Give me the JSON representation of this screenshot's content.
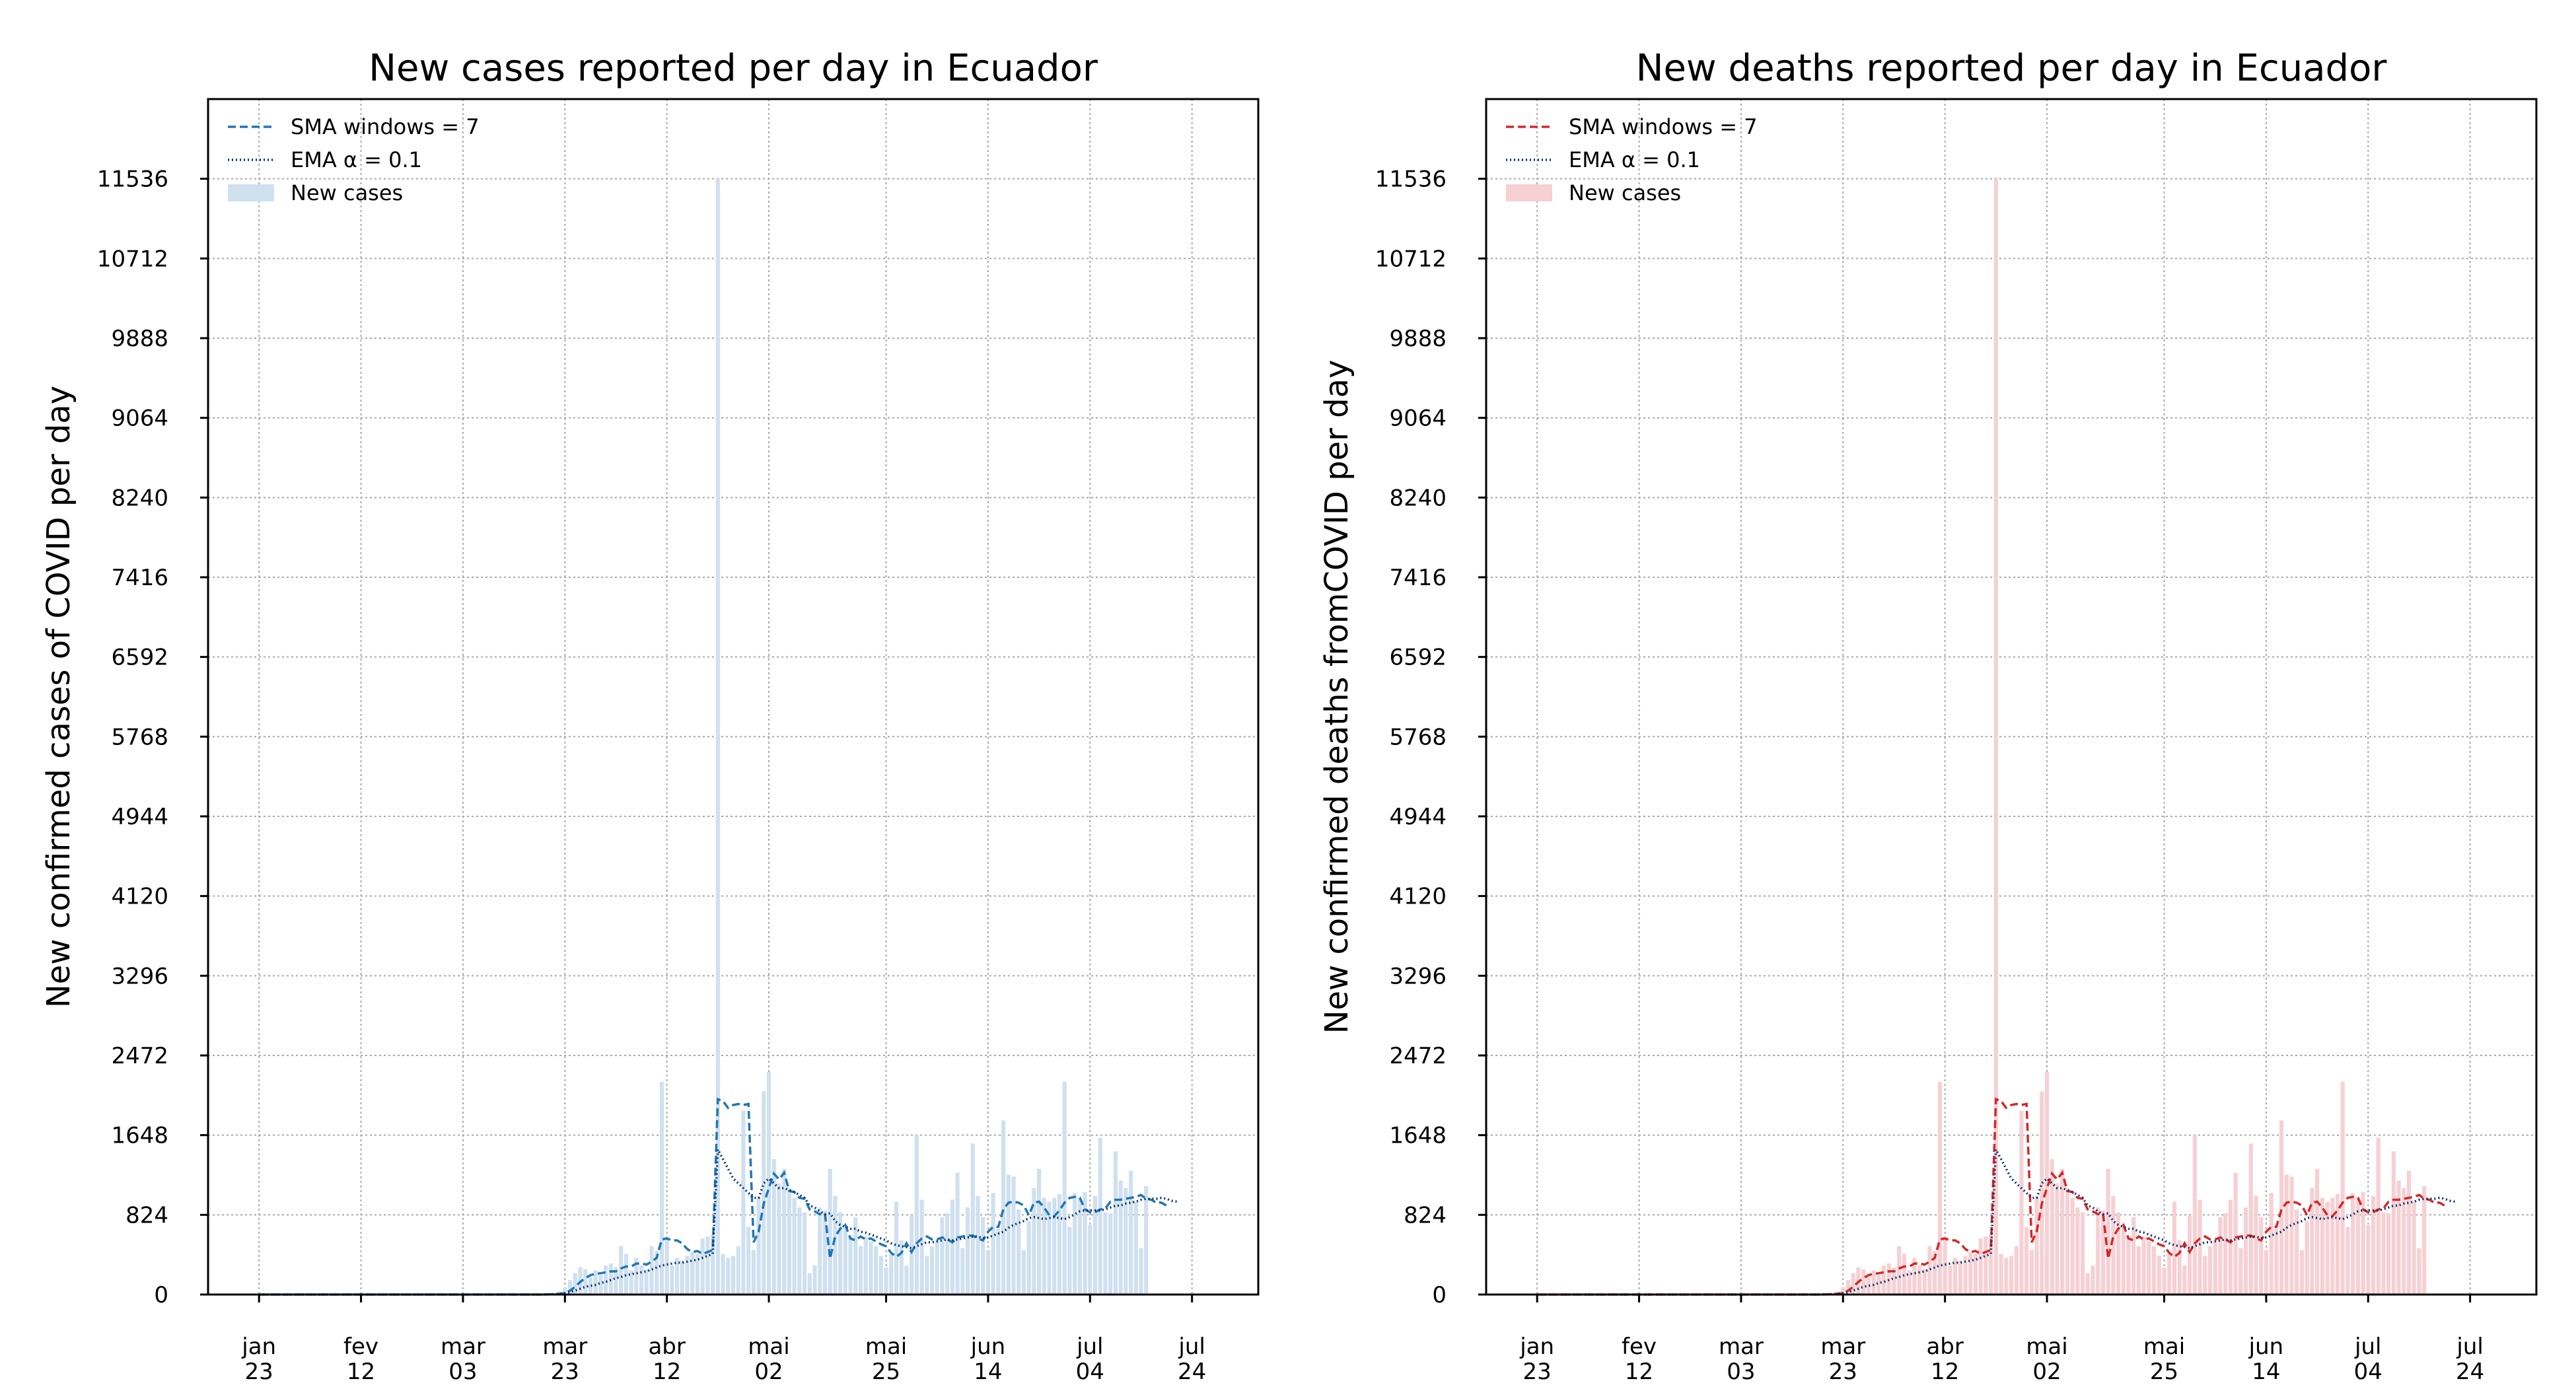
{
  "chart_data": [
    {
      "type": "bar",
      "title": "New cases reported per day in Ecuador",
      "xlabel": "",
      "ylabel": "New confirmed cases of COVID per day",
      "accent": "#1f77b4",
      "bar_color": "#cfe0ef",
      "ema_color": "#08306b",
      "grid": true,
      "legend_position": "top-left",
      "legend": [
        "SMA windows = 7",
        "EMA α = 0.1",
        "New cases"
      ],
      "ylim": [
        0,
        12360
      ],
      "yticks": [
        0,
        824,
        1648,
        2472,
        3296,
        4120,
        4944,
        5768,
        6592,
        7416,
        8240,
        9064,
        9888,
        10712,
        11536
      ],
      "ytick_labels": [
        "0",
        "824",
        "1648",
        "2472",
        "3296",
        "4120",
        "4944",
        "5768",
        "6592",
        "7416",
        "8240",
        "9064",
        "9888",
        "10712",
        "11536"
      ],
      "xlim_days": [
        -10,
        196
      ],
      "xticks": [
        {
          "day": 0,
          "month": "jan",
          "date": "23"
        },
        {
          "day": 20,
          "month": "fev",
          "date": "12"
        },
        {
          "day": 40,
          "month": "mar",
          "date": "03"
        },
        {
          "day": 60,
          "month": "mar",
          "date": "23"
        },
        {
          "day": 80,
          "month": "abr",
          "date": "12"
        },
        {
          "day": 100,
          "month": "mai",
          "date": "02"
        },
        {
          "day": 123,
          "month": "mai",
          "date": "25"
        },
        {
          "day": 143,
          "month": "jun",
          "date": "14"
        },
        {
          "day": 163,
          "month": "jul",
          "date": "04"
        },
        {
          "day": 183,
          "month": "jul",
          "date": "24"
        }
      ],
      "x_start": "2020-01-23",
      "values": [
        0,
        0,
        0,
        0,
        0,
        0,
        0,
        0,
        0,
        0,
        0,
        0,
        0,
        0,
        0,
        0,
        0,
        0,
        0,
        0,
        0,
        0,
        0,
        0,
        0,
        0,
        0,
        0,
        0,
        0,
        0,
        0,
        0,
        0,
        0,
        0,
        0,
        0,
        0,
        0,
        0,
        0,
        0,
        0,
        0,
        0,
        0,
        0,
        0,
        0,
        0,
        0,
        0,
        0,
        0,
        1,
        4,
        7,
        15,
        30,
        70,
        150,
        220,
        280,
        260,
        180,
        250,
        200,
        300,
        320,
        280,
        500,
        420,
        250,
        380,
        300,
        260,
        500,
        450,
        2200,
        600,
        300,
        380,
        350,
        400,
        440,
        420,
        580,
        600,
        620,
        11536,
        420,
        380,
        400,
        500,
        1900,
        700,
        460,
        1000,
        2100,
        2300,
        1400,
        1150,
        1300,
        1100,
        1000,
        900,
        850,
        220,
        300,
        900,
        870,
        1300,
        1020,
        850,
        700,
        600,
        800,
        500,
        600,
        550,
        500,
        400,
        280,
        420,
        960,
        560,
        300,
        820,
        1650,
        980,
        400,
        500,
        560,
        800,
        840,
        980,
        1260,
        480,
        900,
        1560,
        1020,
        800,
        460,
        1050,
        680,
        1800,
        1240,
        1220,
        880,
        460,
        760,
        1100,
        1300,
        1000,
        960,
        1000,
        1040,
        2200,
        700,
        1050,
        1000,
        1060,
        720,
        1020,
        1620,
        850,
        840,
        1480,
        1180,
        1100,
        1280,
        960,
        480,
        1120
      ],
      "sma": [
        0,
        0,
        0,
        0,
        0,
        0,
        0,
        0,
        0,
        0,
        0,
        0,
        0,
        0,
        0,
        0,
        0,
        0,
        0,
        0,
        0,
        0,
        0,
        0,
        0,
        0,
        0,
        0,
        0,
        0,
        0,
        0,
        0,
        0,
        0,
        0,
        0,
        0,
        0,
        0,
        0,
        0,
        0,
        0,
        0,
        0,
        0,
        0,
        0,
        0,
        0,
        0,
        0,
        0,
        0,
        0,
        1,
        2,
        4,
        8,
        15,
        40,
        80,
        130,
        170,
        200,
        215,
        220,
        230,
        240,
        240,
        270,
        290,
        290,
        320,
        320,
        310,
        340,
        380,
        570,
        580,
        560,
        560,
        530,
        470,
        440,
        450,
        420,
        440,
        460,
        2020,
        2000,
        1930,
        1960,
        1970,
        1960,
        1970,
        540,
        650,
        940,
        1100,
        1250,
        1190,
        1260,
        1070,
        1060,
        1000,
        990,
        880,
        860,
        830,
        840,
        370,
        600,
        680,
        720,
        580,
        560,
        600,
        570,
        580,
        550,
        520,
        500,
        430,
        390,
        430,
        530,
        440,
        530,
        580,
        600,
        570,
        570,
        590,
        570,
        540,
        590,
        600,
        610,
        610,
        580,
        560,
        650,
        700,
        700,
        880,
        950,
        960,
        950,
        920,
        820,
        950,
        960,
        900,
        820,
        810,
        870,
        950,
        1000,
        1010,
        1000,
        880,
        850,
        850,
        880,
        890,
        960,
        980,
        980,
        990,
        1000,
        1010,
        1030,
        990,
        980,
        950,
        950,
        920
      ],
      "ema": [
        0,
        0,
        0,
        0,
        0,
        0,
        0,
        0,
        0,
        0,
        0,
        0,
        0,
        0,
        0,
        0,
        0,
        0,
        0,
        0,
        0,
        0,
        0,
        0,
        0,
        0,
        0,
        0,
        0,
        0,
        0,
        0,
        0,
        0,
        0,
        0,
        0,
        0,
        0,
        0,
        0,
        0,
        0,
        0,
        0,
        0,
        0,
        0,
        0,
        0,
        0,
        0,
        0,
        0,
        0,
        0,
        1,
        2,
        4,
        8,
        15,
        25,
        40,
        60,
        80,
        90,
        100,
        120,
        130,
        150,
        170,
        180,
        200,
        210,
        220,
        230,
        240,
        260,
        280,
        300,
        310,
        320,
        330,
        330,
        340,
        350,
        360,
        380,
        400,
        420,
        1500,
        1400,
        1300,
        1200,
        1150,
        1100,
        1050,
        1000,
        1000,
        1150,
        1200,
        1150,
        1100,
        1100,
        1080,
        1060,
        1030,
        1000,
        920,
        900,
        860,
        830,
        840,
        760,
        720,
        700,
        680,
        680,
        650,
        640,
        620,
        600,
        580,
        560,
        530,
        510,
        500,
        490,
        480,
        500,
        520,
        540,
        540,
        550,
        560,
        570,
        560,
        570,
        580,
        590,
        600,
        600,
        580,
        590,
        610,
        630,
        650,
        690,
        720,
        740,
        760,
        790,
        800,
        790,
        780,
        790,
        800,
        790,
        780,
        800,
        830,
        860,
        870,
        870,
        870,
        870,
        880,
        900,
        920,
        920,
        940,
        950,
        960,
        980,
        990,
        990,
        990,
        1000,
        990,
        970,
        960
      ]
    },
    {
      "type": "bar",
      "title": "New deaths reported per day in Ecuador",
      "xlabel": "",
      "ylabel": "New confirmed deaths fromCOVID per day",
      "accent": "#d62728",
      "bar_color": "#f6d0d3",
      "ema_color": "#08306b",
      "grid": true,
      "legend_position": "top-left",
      "legend": [
        "SMA windows = 7",
        "EMA α = 0.1",
        "New cases"
      ],
      "ylim": [
        0,
        12360
      ],
      "yticks": [
        0,
        824,
        1648,
        2472,
        3296,
        4120,
        4944,
        5768,
        6592,
        7416,
        8240,
        9064,
        9888,
        10712,
        11536
      ],
      "ytick_labels": [
        "0",
        "824",
        "1648",
        "2472",
        "3296",
        "4120",
        "4944",
        "5768",
        "6592",
        "7416",
        "8240",
        "9064",
        "9888",
        "10712",
        "11536"
      ],
      "xlim_days": [
        -10,
        196
      ],
      "xticks": [
        {
          "day": 0,
          "month": "jan",
          "date": "23"
        },
        {
          "day": 20,
          "month": "fev",
          "date": "12"
        },
        {
          "day": 40,
          "month": "mar",
          "date": "03"
        },
        {
          "day": 60,
          "month": "mar",
          "date": "23"
        },
        {
          "day": 80,
          "month": "abr",
          "date": "12"
        },
        {
          "day": 100,
          "month": "mai",
          "date": "02"
        },
        {
          "day": 123,
          "month": "mai",
          "date": "25"
        },
        {
          "day": 143,
          "month": "jun",
          "date": "14"
        },
        {
          "day": 163,
          "month": "jul",
          "date": "04"
        },
        {
          "day": 183,
          "month": "jul",
          "date": "24"
        }
      ],
      "x_start": "2020-01-23",
      "values": [
        0,
        0,
        0,
        0,
        0,
        0,
        0,
        0,
        0,
        0,
        0,
        0,
        0,
        0,
        0,
        0,
        0,
        0,
        0,
        0,
        0,
        0,
        0,
        0,
        0,
        0,
        0,
        0,
        0,
        0,
        0,
        0,
        0,
        0,
        0,
        0,
        0,
        0,
        0,
        0,
        0,
        0,
        0,
        0,
        0,
        0,
        0,
        0,
        0,
        0,
        0,
        0,
        0,
        0,
        0,
        1,
        4,
        7,
        15,
        30,
        70,
        150,
        220,
        280,
        260,
        180,
        250,
        200,
        300,
        320,
        280,
        500,
        420,
        250,
        380,
        300,
        260,
        500,
        450,
        2200,
        600,
        300,
        380,
        350,
        400,
        440,
        420,
        580,
        600,
        620,
        11536,
        420,
        380,
        400,
        500,
        1900,
        700,
        460,
        1000,
        2100,
        2300,
        1400,
        1150,
        1300,
        1100,
        1000,
        900,
        850,
        220,
        300,
        900,
        870,
        1300,
        1020,
        850,
        700,
        600,
        800,
        500,
        600,
        550,
        500,
        400,
        280,
        420,
        960,
        560,
        300,
        820,
        1650,
        980,
        400,
        500,
        560,
        800,
        840,
        980,
        1260,
        480,
        900,
        1560,
        1020,
        800,
        460,
        1050,
        680,
        1800,
        1240,
        1220,
        880,
        460,
        760,
        1100,
        1300,
        1000,
        960,
        1000,
        1040,
        2200,
        700,
        1050,
        1000,
        1060,
        720,
        1020,
        1620,
        850,
        840,
        1480,
        1180,
        1100,
        1280,
        960,
        480,
        1120
      ],
      "sma": [
        0,
        0,
        0,
        0,
        0,
        0,
        0,
        0,
        0,
        0,
        0,
        0,
        0,
        0,
        0,
        0,
        0,
        0,
        0,
        0,
        0,
        0,
        0,
        0,
        0,
        0,
        0,
        0,
        0,
        0,
        0,
        0,
        0,
        0,
        0,
        0,
        0,
        0,
        0,
        0,
        0,
        0,
        0,
        0,
        0,
        0,
        0,
        0,
        0,
        0,
        0,
        0,
        0,
        0,
        0,
        0,
        1,
        2,
        4,
        8,
        15,
        40,
        80,
        130,
        170,
        200,
        215,
        220,
        230,
        240,
        240,
        270,
        290,
        290,
        320,
        320,
        310,
        340,
        380,
        570,
        580,
        560,
        560,
        530,
        470,
        440,
        450,
        420,
        440,
        460,
        2020,
        2000,
        1930,
        1960,
        1970,
        1960,
        1970,
        540,
        650,
        940,
        1100,
        1250,
        1190,
        1260,
        1070,
        1060,
        1000,
        990,
        880,
        860,
        830,
        840,
        370,
        600,
        680,
        720,
        580,
        560,
        600,
        570,
        580,
        550,
        520,
        500,
        430,
        390,
        430,
        530,
        440,
        530,
        580,
        600,
        570,
        570,
        590,
        570,
        540,
        590,
        600,
        610,
        610,
        580,
        560,
        650,
        700,
        700,
        880,
        950,
        960,
        950,
        920,
        820,
        950,
        960,
        900,
        820,
        810,
        870,
        950,
        1000,
        1010,
        1000,
        880,
        850,
        850,
        880,
        890,
        960,
        980,
        980,
        990,
        1000,
        1010,
        1030,
        990,
        980,
        950,
        950,
        920
      ],
      "ema": [
        0,
        0,
        0,
        0,
        0,
        0,
        0,
        0,
        0,
        0,
        0,
        0,
        0,
        0,
        0,
        0,
        0,
        0,
        0,
        0,
        0,
        0,
        0,
        0,
        0,
        0,
        0,
        0,
        0,
        0,
        0,
        0,
        0,
        0,
        0,
        0,
        0,
        0,
        0,
        0,
        0,
        0,
        0,
        0,
        0,
        0,
        0,
        0,
        0,
        0,
        0,
        0,
        0,
        0,
        0,
        0,
        1,
        2,
        4,
        8,
        15,
        25,
        40,
        60,
        80,
        90,
        100,
        120,
        130,
        150,
        170,
        180,
        200,
        210,
        220,
        230,
        240,
        260,
        280,
        300,
        310,
        320,
        330,
        330,
        340,
        350,
        360,
        380,
        400,
        420,
        1500,
        1400,
        1300,
        1200,
        1150,
        1100,
        1050,
        1000,
        1000,
        1150,
        1200,
        1150,
        1100,
        1100,
        1080,
        1060,
        1030,
        1000,
        920,
        900,
        860,
        830,
        840,
        760,
        720,
        700,
        680,
        680,
        650,
        640,
        620,
        600,
        580,
        560,
        530,
        510,
        500,
        490,
        480,
        500,
        520,
        540,
        540,
        550,
        560,
        570,
        560,
        570,
        580,
        590,
        600,
        600,
        580,
        590,
        610,
        630,
        650,
        690,
        720,
        740,
        760,
        790,
        800,
        790,
        780,
        790,
        800,
        790,
        780,
        800,
        830,
        860,
        870,
        870,
        870,
        870,
        880,
        900,
        920,
        920,
        940,
        950,
        960,
        980,
        990,
        990,
        990,
        1000,
        990,
        970,
        960
      ]
    }
  ]
}
